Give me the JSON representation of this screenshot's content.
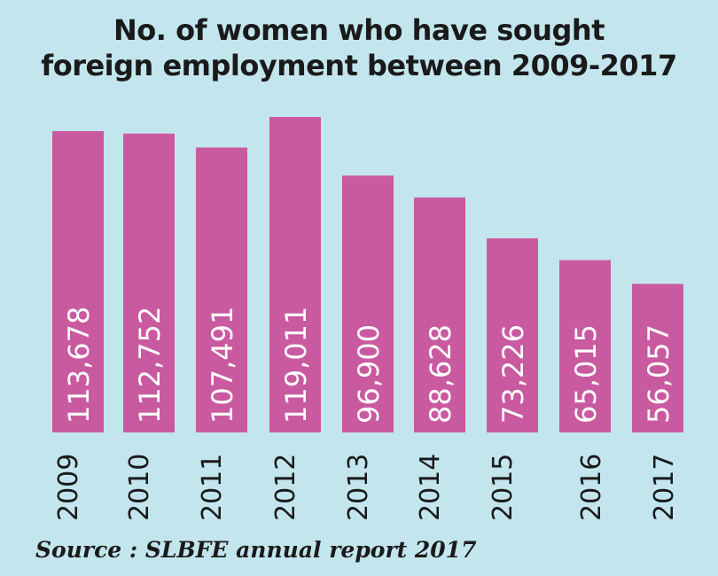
{
  "chart_data": {
    "type": "bar",
    "title_lines": [
      "No. of women who have sought",
      "foreign employment between 2009-2017"
    ],
    "categories": [
      "2009",
      "2010",
      "2011",
      "2012",
      "2013",
      "2014",
      "2015",
      "2016",
      "2017"
    ],
    "values": [
      113678,
      112752,
      107491,
      119011,
      96900,
      88628,
      73226,
      65015,
      56057
    ],
    "value_labels": [
      "113,678",
      "112,752",
      "107,491",
      "119,011",
      "96,900",
      "88,628",
      "73,226",
      "65,015",
      "56,057"
    ],
    "ylim": [
      0,
      119011
    ],
    "bar_color": "#c95aa0",
    "source": "Source : SLBFE annual report 2017"
  }
}
